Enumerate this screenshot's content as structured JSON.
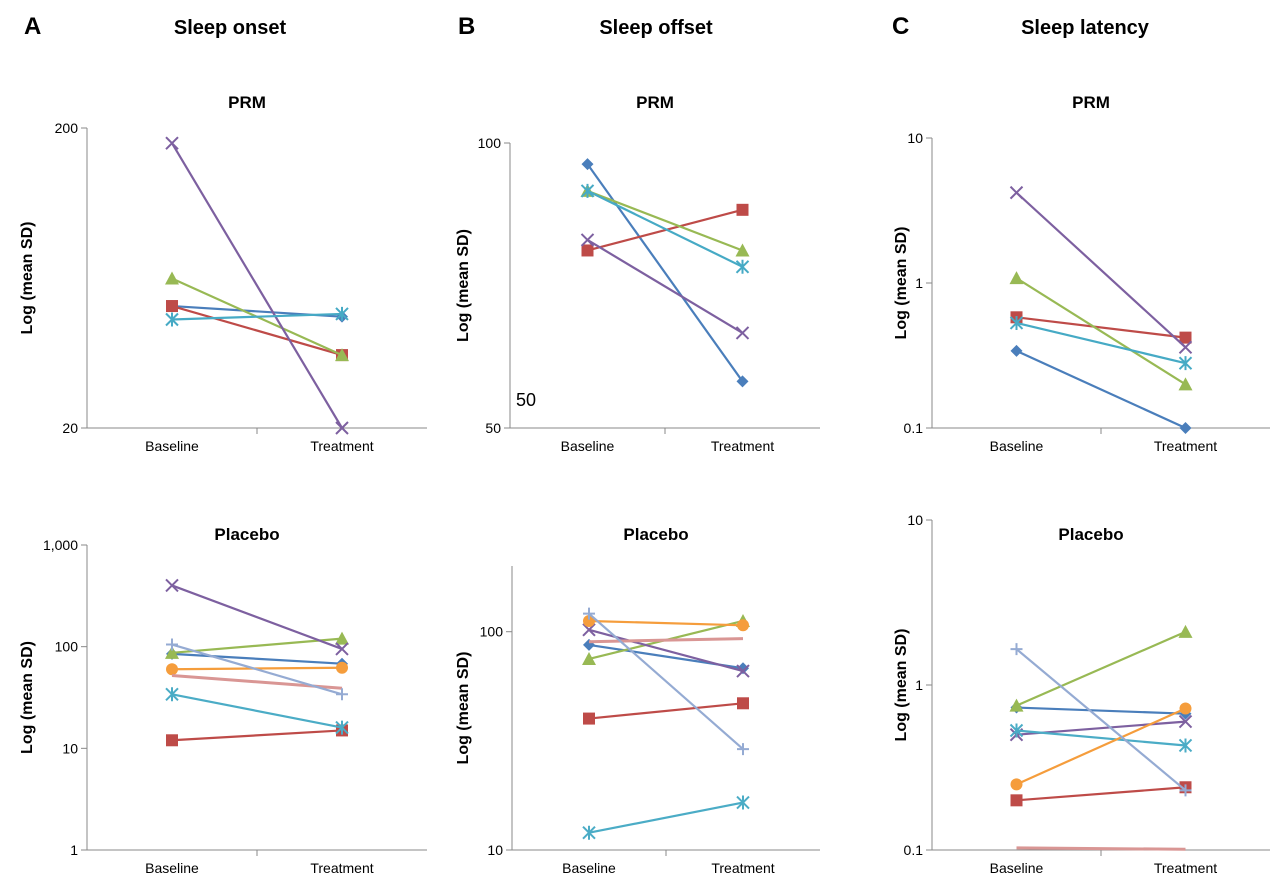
{
  "columns": [
    {
      "letter": "A",
      "title": "Sleep onset"
    },
    {
      "letter": "B",
      "title": "Sleep offset"
    },
    {
      "letter": "C",
      "title": "Sleep latency"
    }
  ],
  "colors": {
    "blue": "#4a7ebb",
    "red": "#be4b48",
    "green": "#98b954",
    "purple": "#7d60a0",
    "cyan": "#46aac5",
    "orange": "#f59d3c",
    "pink": "#d99694",
    "lightblue": "#95abd3",
    "teal": "#4bacc6",
    "axis": "#888888"
  },
  "chart_data": [
    {
      "type": "line",
      "column": 0,
      "row": 0,
      "title": "PRM",
      "ylabel": "Log (mean SD)",
      "yscale": "log",
      "ylim": [
        20,
        200
      ],
      "yticks": [
        {
          "v": 20,
          "label": "20"
        },
        {
          "v": 200,
          "label": "200"
        }
      ],
      "categories": [
        "Baseline",
        "Treatment"
      ],
      "series": [
        {
          "color": "blue",
          "marker": "diamond",
          "values": [
            51,
            47
          ]
        },
        {
          "color": "red",
          "marker": "square",
          "values": [
            51,
            35
          ]
        },
        {
          "color": "green",
          "marker": "triangle",
          "values": [
            63,
            35
          ]
        },
        {
          "color": "purple",
          "marker": "x",
          "values": [
            178,
            20
          ]
        },
        {
          "color": "cyan",
          "marker": "star",
          "values": [
            46,
            48
          ]
        }
      ]
    },
    {
      "type": "line",
      "column": 1,
      "row": 0,
      "title": "PRM",
      "ylabel": "Log (mean SD)",
      "yscale": "log",
      "ylim": [
        50,
        100
      ],
      "yticks": [
        {
          "v": 50,
          "label": "50"
        },
        {
          "v": 100,
          "label": "100"
        }
      ],
      "annotation": "50",
      "categories": [
        "Baseline",
        "Treatment"
      ],
      "series": [
        {
          "color": "blue",
          "marker": "diamond",
          "values": [
            95,
            56
          ]
        },
        {
          "color": "red",
          "marker": "square",
          "values": [
            77,
            85
          ]
        },
        {
          "color": "green",
          "marker": "triangle",
          "values": [
            89,
            77
          ]
        },
        {
          "color": "purple",
          "marker": "x",
          "values": [
            79,
            63
          ]
        },
        {
          "color": "cyan",
          "marker": "star",
          "values": [
            89,
            74
          ]
        }
      ]
    },
    {
      "type": "line",
      "column": 2,
      "row": 0,
      "title": "PRM",
      "ylabel": "Log (mean SD)",
      "yscale": "log",
      "ylim": [
        0.1,
        10
      ],
      "yticks": [
        {
          "v": 0.1,
          "label": "0.1"
        },
        {
          "v": 1,
          "label": "1"
        },
        {
          "v": 10,
          "label": "10"
        }
      ],
      "categories": [
        "Baseline",
        "Treatment"
      ],
      "series": [
        {
          "color": "blue",
          "marker": "diamond",
          "values": [
            0.34,
            0.1
          ]
        },
        {
          "color": "red",
          "marker": "square",
          "values": [
            0.58,
            0.42
          ]
        },
        {
          "color": "green",
          "marker": "triangle",
          "values": [
            1.08,
            0.2
          ]
        },
        {
          "color": "purple",
          "marker": "x",
          "values": [
            4.2,
            0.36
          ]
        },
        {
          "color": "cyan",
          "marker": "star",
          "values": [
            0.53,
            0.28
          ]
        }
      ]
    },
    {
      "type": "line",
      "column": 0,
      "row": 1,
      "title": "Placebo",
      "ylabel": "Log (mean SD)",
      "yscale": "log",
      "ylim": [
        1,
        1000
      ],
      "yticks": [
        {
          "v": 1,
          "label": "1"
        },
        {
          "v": 10,
          "label": "10"
        },
        {
          "v": 100,
          "label": "100"
        },
        {
          "v": 1000,
          "label": "1,000"
        }
      ],
      "categories": [
        "Baseline",
        "Treatment"
      ],
      "series": [
        {
          "color": "blue",
          "marker": "diamond",
          "values": [
            85,
            68
          ]
        },
        {
          "color": "red",
          "marker": "square",
          "values": [
            12,
            15
          ]
        },
        {
          "color": "green",
          "marker": "triangle",
          "values": [
            87,
            120
          ]
        },
        {
          "color": "purple",
          "marker": "x",
          "values": [
            400,
            95
          ]
        },
        {
          "color": "teal",
          "marker": "star",
          "values": [
            34,
            16
          ]
        },
        {
          "color": "orange",
          "marker": "circle",
          "values": [
            60,
            62
          ]
        },
        {
          "color": "pink",
          "marker": "dash",
          "values": [
            52,
            39
          ]
        },
        {
          "color": "lightblue",
          "marker": "plus",
          "values": [
            105,
            34
          ]
        }
      ]
    },
    {
      "type": "line",
      "column": 1,
      "row": 1,
      "title": "Placebo",
      "ylabel": "Log (mean SD)",
      "yscale": "log",
      "ylim": [
        10,
        200
      ],
      "yticks": [
        {
          "v": 10,
          "label": "10"
        },
        {
          "v": 100,
          "label": "100"
        }
      ],
      "categories": [
        "Baseline",
        "Treatment"
      ],
      "series": [
        {
          "color": "blue",
          "marker": "diamond",
          "values": [
            87,
            68
          ]
        },
        {
          "color": "red",
          "marker": "square",
          "values": [
            40,
            47
          ]
        },
        {
          "color": "green",
          "marker": "triangle",
          "values": [
            75,
            112
          ]
        },
        {
          "color": "purple",
          "marker": "x",
          "values": [
            102,
            66
          ]
        },
        {
          "color": "teal",
          "marker": "star",
          "values": [
            12,
            16.5
          ]
        },
        {
          "color": "orange",
          "marker": "circle",
          "values": [
            112,
            107
          ]
        },
        {
          "color": "pink",
          "marker": "dash",
          "values": [
            90,
            93
          ]
        },
        {
          "color": "lightblue",
          "marker": "plus",
          "values": [
            121,
            29
          ]
        }
      ]
    },
    {
      "type": "line",
      "column": 2,
      "row": 1,
      "title": "Placebo",
      "ylabel": "Log (mean SD)",
      "yscale": "log",
      "ylim": [
        0.1,
        10
      ],
      "yticks": [
        {
          "v": 0.1,
          "label": "0.1"
        },
        {
          "v": 1,
          "label": "1"
        },
        {
          "v": 10,
          "label": "10"
        }
      ],
      "categories": [
        "Baseline",
        "Treatment"
      ],
      "series": [
        {
          "color": "blue",
          "marker": "diamond",
          "values": [
            0.73,
            0.67
          ]
        },
        {
          "color": "red",
          "marker": "square",
          "values": [
            0.2,
            0.24
          ]
        },
        {
          "color": "green",
          "marker": "triangle",
          "values": [
            0.75,
            2.1
          ]
        },
        {
          "color": "purple",
          "marker": "x",
          "values": [
            0.5,
            0.6
          ]
        },
        {
          "color": "teal",
          "marker": "star",
          "values": [
            0.53,
            0.43
          ]
        },
        {
          "color": "orange",
          "marker": "circle",
          "values": [
            0.25,
            0.72
          ]
        },
        {
          "color": "pink",
          "marker": "dash",
          "values": [
            0.103,
            0.101
          ]
        },
        {
          "color": "lightblue",
          "marker": "plus",
          "values": [
            1.65,
            0.23
          ]
        }
      ]
    }
  ]
}
